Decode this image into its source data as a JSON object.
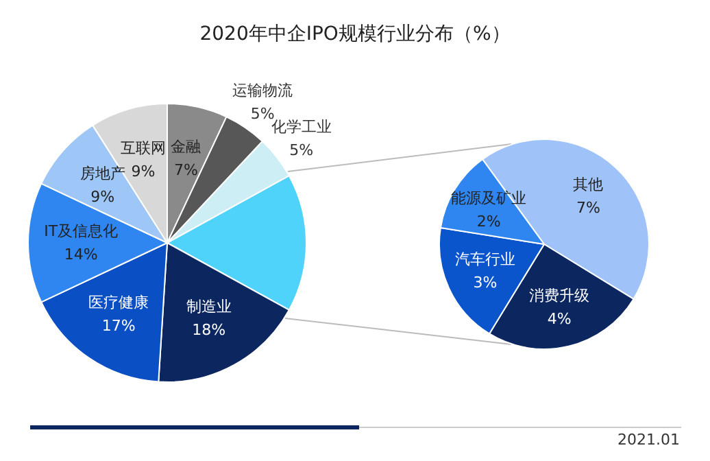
{
  "chart_data": [
    {
      "type": "pie",
      "title": "2020年中企IPO规模行业分布（%）",
      "categories": [
        "金融",
        "运输物流",
        "化学工业",
        null,
        "制造业",
        "医疗健康",
        "IT及信息化",
        "房地产",
        "互联网"
      ],
      "values": [
        7,
        5,
        5,
        16,
        18,
        17,
        14,
        9,
        9
      ],
      "colors": [
        "#8a8a8a",
        "#575757",
        "#cdeef4",
        "#4fd3fb",
        "#0c2660",
        "#0b4fc4",
        "#2f86f0",
        "#9ec6f7",
        "#d8d8d8"
      ],
      "value_labels": [
        "7%",
        "5%",
        "5%",
        null,
        "18%",
        "17%",
        "14%",
        "9%",
        "9%"
      ],
      "legend": false,
      "annotations": [
        "2021.01"
      ]
    },
    {
      "type": "pie",
      "categories": [
        "其他",
        "消费升级",
        "汽车行业",
        "能源及矿业"
      ],
      "values": [
        7,
        4,
        3,
        2
      ],
      "colors": [
        "#9fc3f8",
        "#0c2660",
        "#0b55cc",
        "#2f86f0"
      ],
      "value_labels": [
        "7%",
        "4%",
        "3%",
        "2%"
      ],
      "legend": false
    }
  ]
}
